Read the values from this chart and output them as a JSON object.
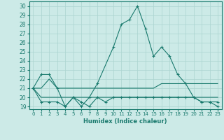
{
  "title": "",
  "xlabel": "Humidex (Indice chaleur)",
  "bg_color": "#cceae7",
  "grid_color": "#aad4d0",
  "line_color": "#1a7a6e",
  "xlim": [
    -0.5,
    23.5
  ],
  "ylim": [
    18.7,
    30.5
  ],
  "yticks": [
    19,
    20,
    21,
    22,
    23,
    24,
    25,
    26,
    27,
    28,
    29,
    30
  ],
  "xticks": [
    0,
    1,
    2,
    3,
    4,
    5,
    6,
    7,
    8,
    9,
    10,
    11,
    12,
    13,
    14,
    15,
    16,
    17,
    18,
    19,
    20,
    21,
    22,
    23
  ],
  "series": [
    {
      "x": [
        0,
        1,
        2,
        3,
        4,
        5,
        6,
        7,
        8,
        10,
        11,
        12,
        13,
        14,
        15,
        16,
        17,
        18,
        19,
        20,
        21,
        22,
        23
      ],
      "y": [
        21.0,
        22.5,
        22.5,
        21.0,
        19.0,
        20.0,
        19.0,
        20.0,
        21.5,
        25.5,
        28.0,
        28.5,
        30.0,
        27.5,
        24.5,
        25.5,
        24.5,
        22.5,
        21.5,
        20.0,
        19.5,
        19.5,
        19.5
      ],
      "marker": true
    },
    {
      "x": [
        0,
        1,
        2,
        3,
        4,
        5,
        6,
        7,
        8,
        9,
        10,
        11,
        12,
        13,
        14,
        15,
        16,
        17,
        18,
        19,
        20,
        21,
        22,
        23
      ],
      "y": [
        21.0,
        21.0,
        22.0,
        21.0,
        21.0,
        21.0,
        21.0,
        21.0,
        21.0,
        21.0,
        21.0,
        21.0,
        21.0,
        21.0,
        21.0,
        21.0,
        21.5,
        21.5,
        21.5,
        21.5,
        21.5,
        21.5,
        21.5,
        21.5
      ],
      "marker": false
    },
    {
      "x": [
        0,
        1,
        2,
        3,
        4,
        5,
        6,
        7,
        8,
        9,
        10,
        11,
        12,
        13,
        14,
        15,
        16,
        17,
        18,
        19,
        20,
        21,
        22,
        23
      ],
      "y": [
        21.0,
        20.0,
        20.0,
        20.0,
        20.0,
        20.0,
        20.0,
        20.0,
        20.0,
        20.0,
        20.0,
        20.0,
        20.0,
        20.0,
        20.0,
        20.0,
        20.0,
        20.0,
        20.0,
        20.0,
        20.0,
        20.0,
        20.0,
        20.0
      ],
      "marker": false
    },
    {
      "x": [
        0,
        1,
        2,
        3,
        4,
        5,
        6,
        7,
        8,
        9,
        10,
        11,
        12,
        13,
        14,
        15,
        16,
        17,
        18,
        19,
        20,
        21,
        22,
        23
      ],
      "y": [
        21.0,
        19.5,
        19.5,
        19.5,
        19.0,
        20.0,
        19.5,
        19.0,
        20.0,
        19.5,
        20.0,
        20.0,
        20.0,
        20.0,
        20.0,
        20.0,
        20.0,
        20.0,
        20.0,
        20.0,
        20.0,
        19.5,
        19.5,
        19.0
      ],
      "marker": true
    }
  ]
}
